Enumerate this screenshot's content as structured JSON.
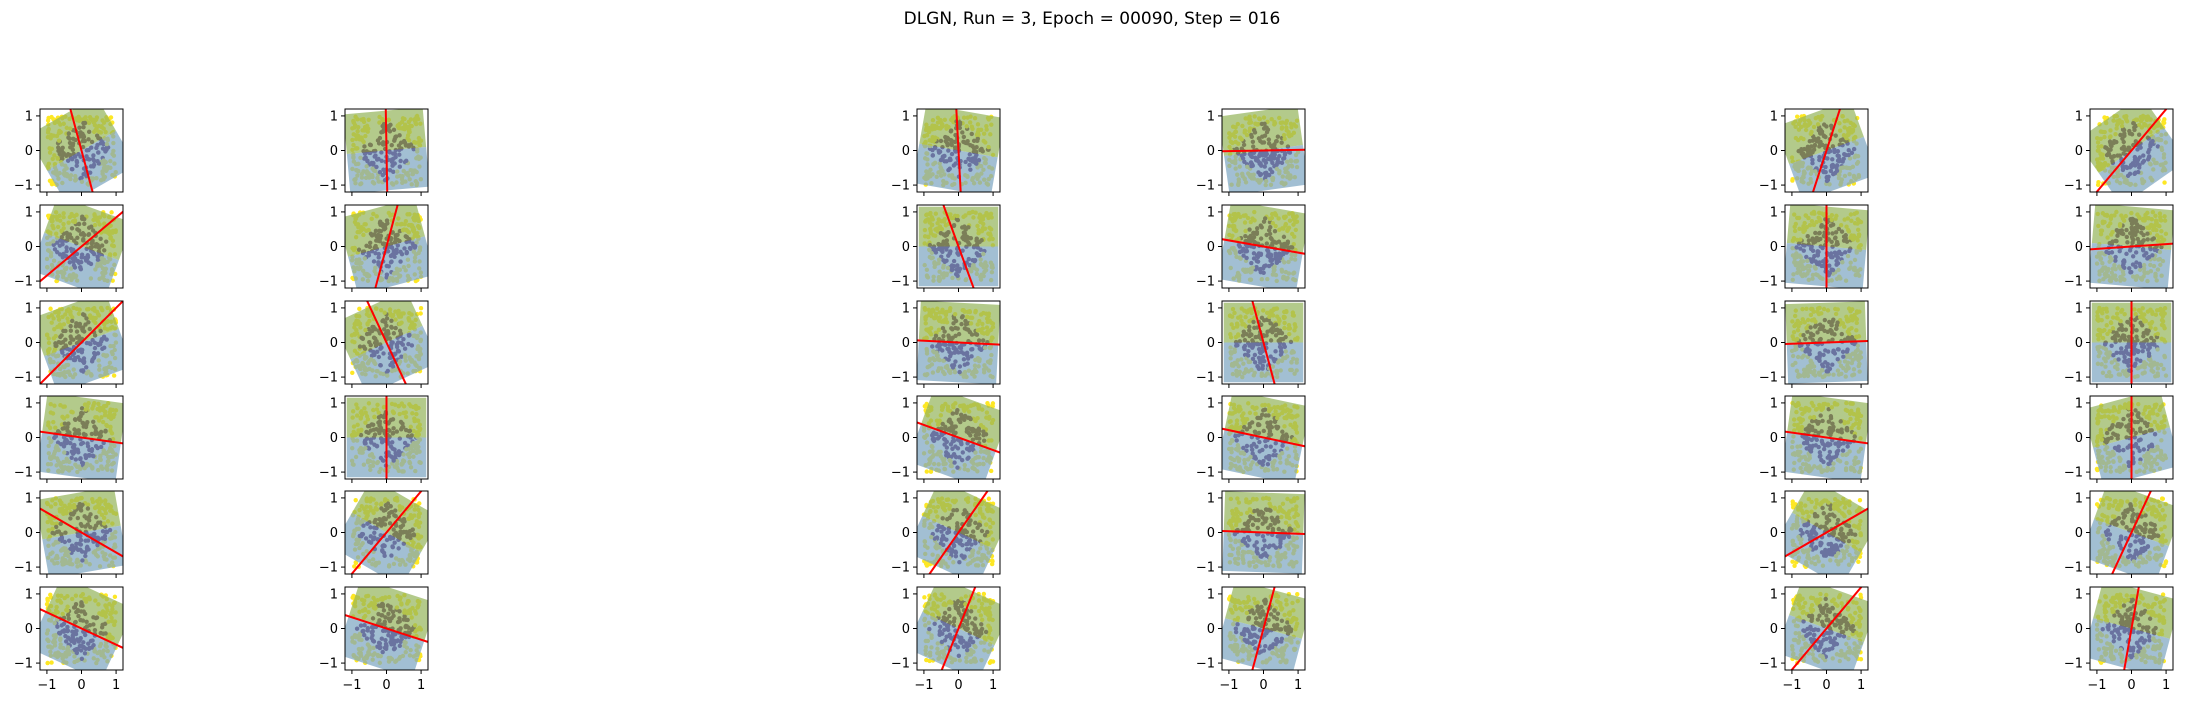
{
  "figure": {
    "title": "DLGN, Run = 3, Epoch = 00090, Step = 016"
  },
  "colors": {
    "inner_class": "#440154",
    "outer_class": "#fde725",
    "region_green": "#93b35a",
    "region_blue": "#7ba4c0",
    "boundary": "#ff0000"
  },
  "chart_data": {
    "type": "scatter",
    "title": "DLGN, Run = 3, Epoch = 00090, Step = 016",
    "layout": {
      "rows": 6,
      "cols": 6
    },
    "xlim": [
      -1.2,
      1.2
    ],
    "ylim": [
      -1.2,
      1.2
    ],
    "xticks": [
      -1,
      0,
      1
    ],
    "yticks": [
      -1,
      0,
      1
    ],
    "xtick_labels": [
      "-1",
      "0",
      "1"
    ],
    "ytick_labels": [
      "-1",
      "0",
      "1"
    ],
    "grid": false,
    "legend": "none",
    "data_description": {
      "points_per_panel": 260,
      "inner_class": "points with |x| + |y| <= 0.9 (purple)",
      "outer_class": "remaining points in the square (yellow)"
    },
    "panels": [
      {
        "row": 0,
        "col": 0,
        "boundary_angle_deg": 105,
        "shaded_angle_deg": 30
      },
      {
        "row": 0,
        "col": 1,
        "boundary_angle_deg": 91,
        "shaded_angle_deg": 5
      },
      {
        "row": 0,
        "col": 2,
        "boundary_angle_deg": 93,
        "shaded_angle_deg": -10
      },
      {
        "row": 0,
        "col": 3,
        "boundary_angle_deg": 1,
        "shaded_angle_deg": 8
      },
      {
        "row": 0,
        "col": 4,
        "boundary_angle_deg": 72,
        "shaded_angle_deg": 20
      },
      {
        "row": 0,
        "col": 5,
        "boundary_angle_deg": 50,
        "shaded_angle_deg": 35
      },
      {
        "row": 1,
        "col": 0,
        "boundary_angle_deg": 40,
        "shaded_angle_deg": -20
      },
      {
        "row": 1,
        "col": 1,
        "boundary_angle_deg": 75,
        "shaded_angle_deg": 15
      },
      {
        "row": 1,
        "col": 2,
        "boundary_angle_deg": 110,
        "shaded_angle_deg": 0
      },
      {
        "row": 1,
        "col": 3,
        "boundary_angle_deg": -10,
        "shaded_angle_deg": -10
      },
      {
        "row": 1,
        "col": 4,
        "boundary_angle_deg": 90,
        "shaded_angle_deg": -5
      },
      {
        "row": 1,
        "col": 5,
        "boundary_angle_deg": 4,
        "shaded_angle_deg": -5
      },
      {
        "row": 2,
        "col": 0,
        "boundary_angle_deg": 45,
        "shaded_angle_deg": 20
      },
      {
        "row": 2,
        "col": 1,
        "boundary_angle_deg": 115,
        "shaded_angle_deg": 25
      },
      {
        "row": 2,
        "col": 2,
        "boundary_angle_deg": -3,
        "shaded_angle_deg": -3
      },
      {
        "row": 2,
        "col": 3,
        "boundary_angle_deg": 105,
        "shaded_angle_deg": 0
      },
      {
        "row": 2,
        "col": 4,
        "boundary_angle_deg": 2,
        "shaded_angle_deg": 2
      },
      {
        "row": 2,
        "col": 5,
        "boundary_angle_deg": 90,
        "shaded_angle_deg": 0
      },
      {
        "row": 3,
        "col": 0,
        "boundary_angle_deg": -8,
        "shaded_angle_deg": -8
      },
      {
        "row": 3,
        "col": 1,
        "boundary_angle_deg": 90,
        "shaded_angle_deg": 0
      },
      {
        "row": 3,
        "col": 2,
        "boundary_angle_deg": -20,
        "shaded_angle_deg": -20
      },
      {
        "row": 3,
        "col": 3,
        "boundary_angle_deg": -12,
        "shaded_angle_deg": -12
      },
      {
        "row": 3,
        "col": 4,
        "boundary_angle_deg": -8,
        "shaded_angle_deg": -8
      },
      {
        "row": 3,
        "col": 5,
        "boundary_angle_deg": 90,
        "shaded_angle_deg": 15
      },
      {
        "row": 4,
        "col": 0,
        "boundary_angle_deg": -30,
        "shaded_angle_deg": 10
      },
      {
        "row": 4,
        "col": 1,
        "boundary_angle_deg": 50,
        "shaded_angle_deg": -30
      },
      {
        "row": 4,
        "col": 2,
        "boundary_angle_deg": 55,
        "shaded_angle_deg": -25
      },
      {
        "row": 4,
        "col": 3,
        "boundary_angle_deg": -2,
        "shaded_angle_deg": -2
      },
      {
        "row": 4,
        "col": 4,
        "boundary_angle_deg": 30,
        "shaded_angle_deg": -30
      },
      {
        "row": 4,
        "col": 5,
        "boundary_angle_deg": 65,
        "shaded_angle_deg": -20
      },
      {
        "row": 5,
        "col": 0,
        "boundary_angle_deg": -25,
        "shaded_angle_deg": -25
      },
      {
        "row": 5,
        "col": 1,
        "boundary_angle_deg": -18,
        "shaded_angle_deg": -18
      },
      {
        "row": 5,
        "col": 2,
        "boundary_angle_deg": 68,
        "shaded_angle_deg": -25
      },
      {
        "row": 5,
        "col": 3,
        "boundary_angle_deg": 75,
        "shaded_angle_deg": -15
      },
      {
        "row": 5,
        "col": 4,
        "boundary_angle_deg": 50,
        "shaded_angle_deg": -20
      },
      {
        "row": 5,
        "col": 5,
        "boundary_angle_deg": 80,
        "shaded_angle_deg": -15
      }
    ]
  }
}
